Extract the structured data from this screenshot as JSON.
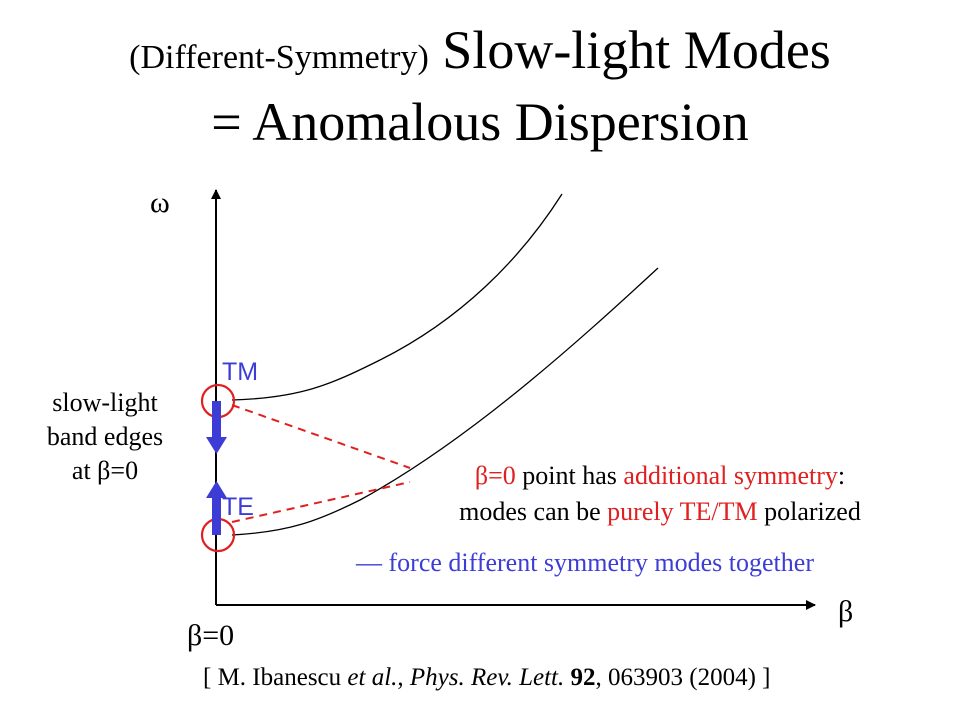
{
  "title": {
    "prefix": "(Different-Symmetry)",
    "main": "Slow-light Modes",
    "line2": "= Anomalous Dispersion"
  },
  "axes": {
    "y_label": "ω",
    "x_label": "β",
    "origin_label": "β=0"
  },
  "modes": {
    "upper": "TM",
    "lower": "TE"
  },
  "band_edge_label": {
    "line1": "slow-light",
    "line2": "band edges",
    "line3": "at β=0"
  },
  "symmetry_note": {
    "l1_a": "β=0",
    "l1_b": " point has ",
    "l1_c": "additional symmetry",
    "l1_d": ":",
    "l2_a": "modes can be ",
    "l2_b": "purely TE/TM",
    "l2_c": " polarized"
  },
  "force_note": "— force different symmetry modes together",
  "citation": {
    "open": "[ M. Ibanescu ",
    "etal": "et al.",
    "sep1": ", ",
    "journal": "Phys. Rev. Lett.",
    "sep2": " ",
    "volume": "92",
    "rest": ", 063903 (2004) ]"
  },
  "colors": {
    "accent_blue": "#3d3dd6",
    "highlight_red": "#e02020",
    "axis": "#000000"
  }
}
